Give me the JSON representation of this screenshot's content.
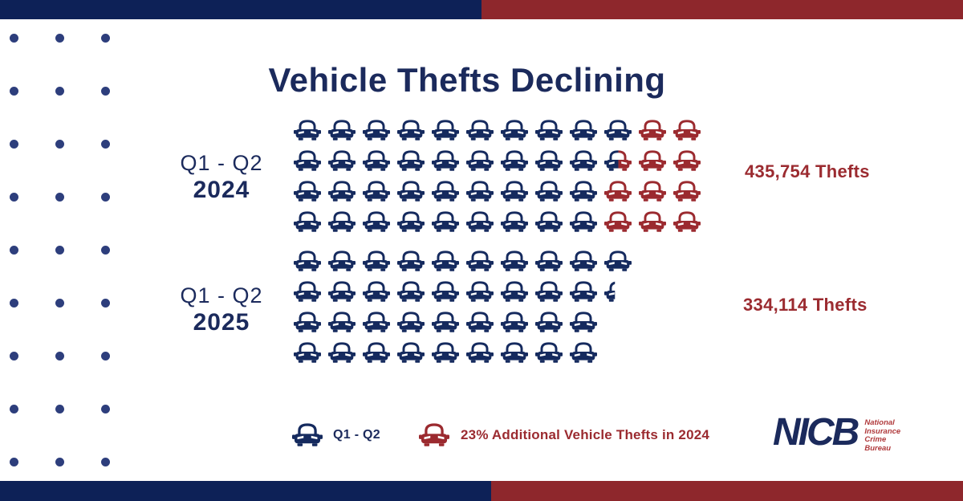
{
  "page": {
    "title": "Vehicle Thefts Declining"
  },
  "colors": {
    "navy": "#152a5e",
    "bar_navy": "#0d2157",
    "red": "#9b2a2f",
    "bar_red": "#8e272c",
    "dot_navy": "#2d3e7c",
    "logo_red": "#b03a3c"
  },
  "groups": [
    {
      "label_top": "Q1 - Q2",
      "label_year": "2024",
      "total_label": "435,754 Thefts",
      "rows": [
        [
          "blue",
          "blue",
          "blue",
          "blue",
          "blue",
          "blue",
          "blue",
          "blue",
          "blue",
          "blue",
          "red",
          "red"
        ],
        [
          "blue",
          "blue",
          "blue",
          "blue",
          "blue",
          "blue",
          "blue",
          "blue",
          "blue",
          "half",
          "red",
          "red"
        ],
        [
          "blue",
          "blue",
          "blue",
          "blue",
          "blue",
          "blue",
          "blue",
          "blue",
          "blue",
          "red",
          "red",
          "red"
        ],
        [
          "blue",
          "blue",
          "blue",
          "blue",
          "blue",
          "blue",
          "blue",
          "blue",
          "blue",
          "red",
          "red",
          "red"
        ]
      ]
    },
    {
      "label_top": "Q1 - Q2",
      "label_year": "2025",
      "total_label": "334,114 Thefts",
      "rows": [
        [
          "blue",
          "blue",
          "blue",
          "blue",
          "blue",
          "blue",
          "blue",
          "blue",
          "blue",
          "blue"
        ],
        [
          "blue",
          "blue",
          "blue",
          "blue",
          "blue",
          "blue",
          "blue",
          "blue",
          "blue",
          "partial"
        ],
        [
          "blue",
          "blue",
          "blue",
          "blue",
          "blue",
          "blue",
          "blue",
          "blue",
          "blue"
        ],
        [
          "blue",
          "blue",
          "blue",
          "blue",
          "blue",
          "blue",
          "blue",
          "blue",
          "blue"
        ]
      ]
    }
  ],
  "legend": {
    "items": [
      {
        "icon": "blue-car-icon",
        "label": "Q1 - Q2"
      },
      {
        "icon": "red-car-icon",
        "label": "23% Additional Vehicle Thefts in 2024"
      }
    ]
  },
  "logo": {
    "name": "NICB",
    "tagline_lines": [
      "National",
      "Insurance",
      "Crime",
      "Bureau"
    ]
  },
  "decoration": {
    "dot_cols": 3,
    "dot_rows": 9
  },
  "chart_data": {
    "type": "pictogram",
    "title": "Vehicle Thefts Declining",
    "categories": [
      "Q1 - Q2 2024",
      "Q1 - Q2 2025"
    ],
    "values": [
      435754,
      334114
    ],
    "value_labels": [
      "435,754 Thefts",
      "334,114 Thefts"
    ],
    "icon_unit": "car icons",
    "icon_counts": {
      "2024": {
        "blue": 37.5,
        "red": 10.5,
        "total": 48
      },
      "2025": {
        "blue": 37.4,
        "red": 0
      }
    },
    "legend": [
      {
        "symbol": "blue-car",
        "label": "Q1 - Q2"
      },
      {
        "symbol": "red-car",
        "label": "23% Additional Vehicle Thefts in 2024"
      }
    ],
    "layout": {
      "rows_per_group": 4,
      "icons_per_row_2024": 12,
      "icons_per_row_2025": 10
    }
  }
}
